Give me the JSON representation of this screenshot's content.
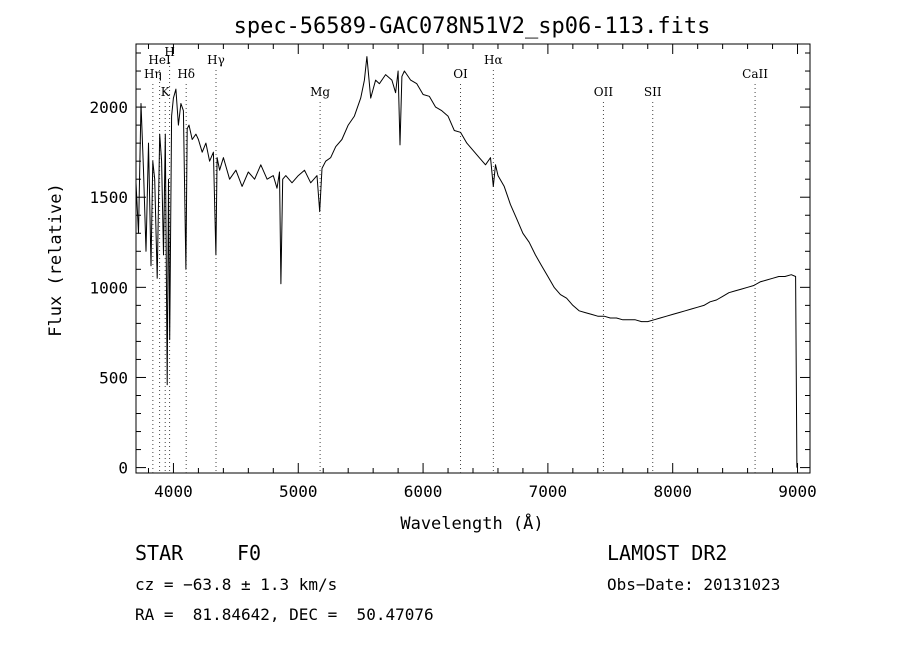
{
  "chart_data": {
    "type": "line",
    "title": "spec-56589-GAC078N51V2_sp06-113.fits",
    "xlabel": "Wavelength (Å)",
    "ylabel": "Flux (relative)",
    "xlim": [
      3700,
      9100
    ],
    "ylim": [
      -30,
      2350
    ],
    "xticks": [
      4000,
      5000,
      6000,
      7000,
      8000,
      9000
    ],
    "yticks": [
      0,
      500,
      1000,
      1500,
      2000
    ],
    "grid": false,
    "series": [
      {
        "values_x": [
          3700,
          3720,
          3740,
          3760,
          3780,
          3800,
          3820,
          3835,
          3850,
          3870,
          3890,
          3905,
          3920,
          3935,
          3950,
          3960,
          3970,
          3985,
          4000,
          4020,
          4040,
          4060,
          4080,
          4100,
          4110,
          4125,
          4150,
          4180,
          4200,
          4230,
          4260,
          4290,
          4320,
          4340,
          4350,
          4370,
          4400,
          4450,
          4500,
          4550,
          4600,
          4650,
          4700,
          4750,
          4800,
          4830,
          4850,
          4861,
          4875,
          4900,
          4950,
          5000,
          5050,
          5100,
          5150,
          5172,
          5190,
          5220,
          5260,
          5300,
          5350,
          5400,
          5450,
          5500,
          5530,
          5550,
          5580,
          5620,
          5650,
          5700,
          5750,
          5780,
          5800,
          5815,
          5830,
          5850,
          5880,
          5900,
          5950,
          6000,
          6050,
          6100,
          6150,
          6200,
          6250,
          6300,
          6350,
          6400,
          6450,
          6500,
          6540,
          6563,
          6580,
          6600,
          6650,
          6700,
          6750,
          6800,
          6850,
          6900,
          6950,
          7000,
          7050,
          7100,
          7150,
          7200,
          7250,
          7300,
          7350,
          7400,
          7450,
          7500,
          7550,
          7600,
          7650,
          7700,
          7750,
          7800,
          7850,
          7900,
          7950,
          8000,
          8050,
          8100,
          8150,
          8200,
          8250,
          8300,
          8350,
          8400,
          8450,
          8500,
          8550,
          8600,
          8650,
          8700,
          8750,
          8800,
          8850,
          8900,
          8950,
          8985,
          8990,
          8995
        ],
        "values_y": [
          1580,
          1300,
          2020,
          1650,
          1200,
          1800,
          1120,
          1700,
          1600,
          1050,
          1850,
          1700,
          1180,
          1850,
          460,
          1600,
          710,
          1950,
          2050,
          2100,
          1900,
          2020,
          1980,
          1100,
          1880,
          1900,
          1820,
          1850,
          1820,
          1750,
          1800,
          1700,
          1750,
          1180,
          1720,
          1650,
          1720,
          1600,
          1650,
          1560,
          1640,
          1600,
          1680,
          1600,
          1620,
          1550,
          1640,
          1020,
          1600,
          1620,
          1580,
          1620,
          1650,
          1580,
          1620,
          1420,
          1660,
          1700,
          1720,
          1780,
          1820,
          1900,
          1950,
          2050,
          2150,
          2280,
          2050,
          2150,
          2130,
          2180,
          2150,
          2080,
          2200,
          1790,
          2170,
          2200,
          2170,
          2150,
          2130,
          2070,
          2060,
          2000,
          1980,
          1950,
          1870,
          1860,
          1800,
          1760,
          1720,
          1680,
          1720,
          1560,
          1680,
          1620,
          1560,
          1460,
          1380,
          1300,
          1250,
          1180,
          1120,
          1060,
          1000,
          960,
          940,
          900,
          870,
          860,
          850,
          840,
          840,
          830,
          830,
          820,
          820,
          820,
          810,
          810,
          820,
          830,
          840,
          850,
          860,
          870,
          880,
          890,
          900,
          920,
          930,
          950,
          970,
          980,
          990,
          1000,
          1010,
          1030,
          1040,
          1050,
          1060,
          1060,
          1070,
          1060,
          490,
          0
        ]
      }
    ],
    "line_markers": [
      {
        "label": "Hη",
        "x": 3835,
        "row": 2
      },
      {
        "label": "HeI",
        "x": 3889,
        "row": 1
      },
      {
        "label": "K",
        "x": 3934,
        "row": 3
      },
      {
        "label": "H",
        "x": 3969,
        "row": 0
      },
      {
        "label": "Hδ",
        "x": 4102,
        "row": 2
      },
      {
        "label": "Hγ",
        "x": 4341,
        "row": 1
      },
      {
        "label": "Mg",
        "x": 5175,
        "row": 3
      },
      {
        "label": "OI",
        "x": 6300,
        "row": 2
      },
      {
        "label": "Hα",
        "x": 6563,
        "row": 1
      },
      {
        "label": "OII",
        "x": 7445,
        "row": 3
      },
      {
        "label": "SII",
        "x": 7840,
        "row": 3
      },
      {
        "label": "CaII",
        "x": 8660,
        "row": 2
      }
    ]
  },
  "info": {
    "object_class": "STAR",
    "subclass": "F0",
    "survey": "LAMOST DR2",
    "cz": "cz = −63.8 ± 1.3 km/s",
    "obs_date": "Obs−Date: 20131023",
    "coords": "RA =  81.84642, DEC =  50.47076"
  }
}
